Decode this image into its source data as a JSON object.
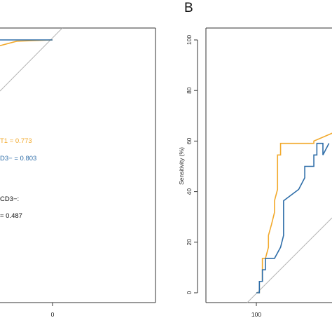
{
  "colors": {
    "orange": "#F2A92B",
    "blue": "#2E6DA8",
    "diag": "#b5b5b5",
    "axis": "#333333"
  },
  "chart_data": [
    {
      "type": "line",
      "panel_label": "",
      "x_ticks": [
        "0"
      ],
      "xlim": [
        100,
        0
      ],
      "ylim": [
        0,
        100
      ],
      "series": [
        {
          "color": "#F2A92B",
          "x": [
            100,
            97,
            60,
            0
          ],
          "y": [
            96.5,
            97.2,
            99.5,
            100
          ]
        },
        {
          "color": "#2E6DA8",
          "x": [
            100,
            96,
            90,
            30,
            0
          ],
          "y": [
            96.5,
            99.5,
            100,
            100,
            100
          ]
        }
      ],
      "annotations": [
        {
          "text": "T1 = 0.773",
          "color": "#F2A92B"
        },
        {
          "text": "D3− = 0.803",
          "color": "#2E6DA8"
        },
        {
          "text": "CD3−:",
          "color": "#111111"
        },
        {
          "text": "= 0.487",
          "color": "#111111"
        }
      ]
    },
    {
      "type": "line",
      "panel_label": "B",
      "ylabel": "Sensitivity (%)",
      "y_ticks": [
        0,
        20,
        40,
        60,
        80,
        100
      ],
      "x_ticks": [
        "100"
      ],
      "xlim": [
        100,
        60
      ],
      "ylim": [
        0,
        100
      ],
      "series": [
        {
          "color": "#F2A92B",
          "x": [
            100,
            99,
            99,
            98,
            98,
            97,
            96,
            96,
            95,
            94,
            94,
            93,
            93,
            92,
            92,
            81,
            81,
            74
          ],
          "y": [
            0,
            0,
            4.5,
            4.5,
            13.6,
            13.6,
            18,
            22.7,
            27,
            31.8,
            36.4,
            40.9,
            54.5,
            54.5,
            59.1,
            59.1,
            60,
            63.6
          ]
        },
        {
          "color": "#2E6DA8",
          "x": [
            100,
            99,
            99,
            98,
            98,
            97,
            97,
            94,
            94,
            92,
            92,
            91,
            91,
            86,
            84,
            84,
            81,
            81,
            80,
            80,
            78,
            78,
            76
          ],
          "y": [
            0,
            0,
            4.5,
            4.5,
            9.1,
            9.1,
            13.6,
            13.6,
            13.6,
            18,
            18,
            22.7,
            36.4,
            40.9,
            45.5,
            50,
            50,
            54.5,
            54.5,
            59.1,
            59.1,
            54.5,
            59.1
          ]
        }
      ]
    }
  ]
}
